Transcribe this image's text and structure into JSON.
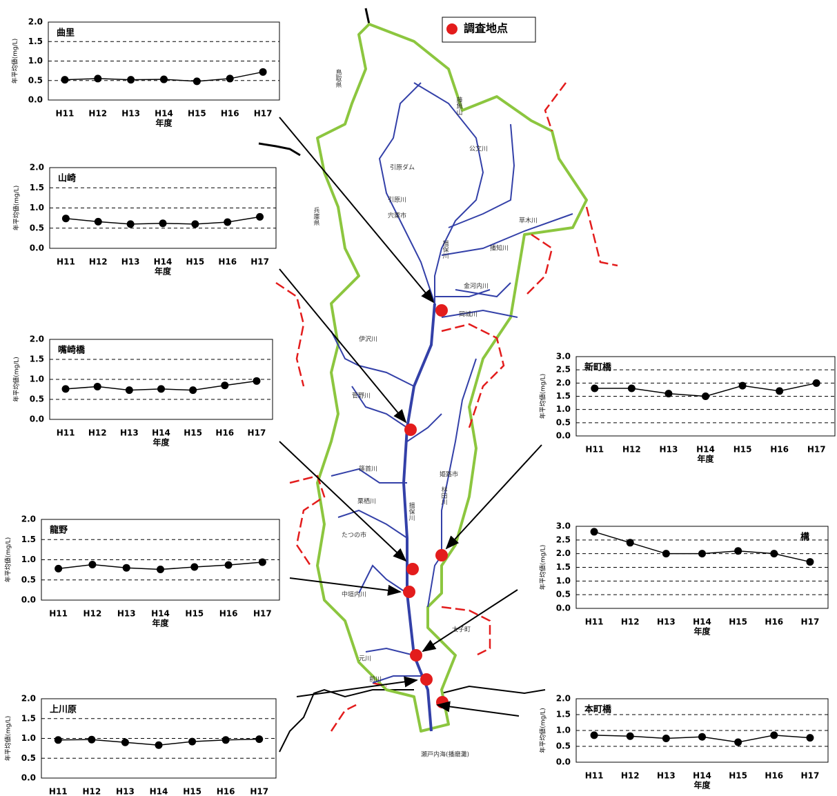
{
  "chart_data": [
    {
      "type": "line",
      "title": "曲里",
      "x_label": "年度",
      "y_label": "年平均値(mg/L)",
      "categories": [
        "H11",
        "H12",
        "H13",
        "H14",
        "H15",
        "H16",
        "H17"
      ],
      "values": [
        0.52,
        0.55,
        0.52,
        0.53,
        0.48,
        0.55,
        0.72
      ],
      "color": "#000000",
      "ylim": [
        0,
        2
      ],
      "yticks": [
        {
          "value": 0,
          "label": "0.0"
        },
        0.5,
        {
          "value": 1,
          "label": "1.0"
        },
        1.5,
        {
          "value": 2,
          "label": "2.0"
        }
      ],
      "grid": true
    },
    {
      "type": "line",
      "title": "山崎",
      "x_label": "年度",
      "y_label": "年平均値(mg/L)",
      "categories": [
        "H11",
        "H12",
        "H13",
        "H14",
        "H15",
        "H16",
        "H17"
      ],
      "values": [
        0.74,
        0.66,
        0.6,
        0.62,
        0.6,
        0.65,
        0.78
      ],
      "color": "#000000",
      "ylim": [
        0,
        2
      ],
      "yticks": [
        {
          "value": 0,
          "label": "0.0"
        },
        0.5,
        {
          "value": 1,
          "label": "1.0"
        },
        1.5,
        {
          "value": 2,
          "label": "2.0"
        }
      ],
      "grid": true
    },
    {
      "type": "line",
      "title": "嘴崎橋",
      "x_label": "年度",
      "y_label": "年平均値(mg/L)",
      "categories": [
        "H11",
        "H12",
        "H13",
        "H14",
        "H15",
        "H16",
        "H17"
      ],
      "values": [
        0.76,
        0.82,
        0.73,
        0.76,
        0.73,
        0.85,
        0.96
      ],
      "color": "#000000",
      "ylim": [
        0,
        2
      ],
      "yticks": [
        {
          "value": 0,
          "label": "0.0"
        },
        0.5,
        {
          "value": 1,
          "label": "1.0"
        },
        1.5,
        {
          "value": 2,
          "label": "2.0"
        }
      ],
      "grid": true
    },
    {
      "type": "line",
      "title": "龍野",
      "x_label": "年度",
      "y_label": "年平均値(mg/L)",
      "categories": [
        "H11",
        "H12",
        "H13",
        "H14",
        "H15",
        "H16",
        "H17"
      ],
      "values": [
        0.78,
        0.88,
        0.8,
        0.76,
        0.82,
        0.87,
        0.94
      ],
      "color": "#000000",
      "ylim": [
        0,
        2
      ],
      "yticks": [
        {
          "value": 0,
          "label": "0.0"
        },
        0.5,
        {
          "value": 1,
          "label": "1.0"
        },
        1.5,
        {
          "value": 2,
          "label": "2.0"
        }
      ],
      "grid": true
    },
    {
      "type": "line",
      "title": "上川原",
      "x_label": "年度",
      "y_label": "年平均値(mg/L)",
      "categories": [
        "H11",
        "H12",
        "H13",
        "H14",
        "H15",
        "H16",
        "H17"
      ],
      "values": [
        0.96,
        0.97,
        0.9,
        0.83,
        0.92,
        0.96,
        0.98
      ],
      "color": "#000000",
      "ylim": [
        0,
        2
      ],
      "yticks": [
        {
          "value": 0,
          "label": "0.0"
        },
        0.5,
        {
          "value": 1,
          "label": "1.0"
        },
        1.5,
        {
          "value": 2,
          "label": "2.0"
        }
      ],
      "grid": true
    },
    {
      "type": "line",
      "title": "新町橋",
      "x_label": "年度",
      "y_label": "年平均値(mg/L)",
      "categories": [
        "H11",
        "H12",
        "H13",
        "H14",
        "H15",
        "H16",
        "H17"
      ],
      "values": [
        1.8,
        1.8,
        1.6,
        1.5,
        1.9,
        1.7,
        2.0
      ],
      "color": "#000000",
      "ylim": [
        0,
        3
      ],
      "yticks": [
        {
          "value": 0,
          "label": "0.0"
        },
        0.5,
        {
          "value": 1,
          "label": "1.0"
        },
        1.5,
        {
          "value": 2,
          "label": "2.0"
        },
        2.5,
        {
          "value": 3,
          "label": "3.0"
        }
      ],
      "grid": true
    },
    {
      "type": "line",
      "title": "構",
      "x_label": "年度",
      "y_label": "年平均値(mg/L)",
      "categories": [
        "H11",
        "H12",
        "H13",
        "H14",
        "H15",
        "H16",
        "H17"
      ],
      "values": [
        2.8,
        2.4,
        2.0,
        2.0,
        2.1,
        2.0,
        1.7
      ],
      "color": "#000000",
      "ylim": [
        0,
        3
      ],
      "yticks": [
        {
          "value": 0,
          "label": "0.0"
        },
        0.5,
        {
          "value": 1,
          "label": "1.0"
        },
        1.5,
        {
          "value": 2,
          "label": "2.0"
        },
        2.5,
        {
          "value": 3,
          "label": "3.0"
        }
      ],
      "grid": true
    },
    {
      "type": "line",
      "title": "本町橋",
      "x_label": "年度",
      "y_label": "年平均値(mg/L)",
      "categories": [
        "H11",
        "H12",
        "H13",
        "H14",
        "H15",
        "H16",
        "H17"
      ],
      "values": [
        0.85,
        0.82,
        0.75,
        0.8,
        0.63,
        0.85,
        0.77
      ],
      "color": "#000000",
      "ylim": [
        0,
        2
      ],
      "yticks": [
        {
          "value": 0,
          "label": "0.0"
        },
        0.5,
        {
          "value": 1,
          "label": "1.0"
        },
        1.5,
        {
          "value": 2,
          "label": "2.0"
        }
      ],
      "grid": true
    }
  ],
  "map": {
    "legend": "調査地点",
    "labels": [
      "鳥取県",
      "藤無山",
      "公文川",
      "引原ダム",
      "引原川",
      "兵庫県",
      "宍粟市",
      "草木川",
      "揖保川",
      "播知川",
      "金河内川",
      "岡城川",
      "伊沢川",
      "菅野川",
      "篠首川",
      "姫路市",
      "林田川",
      "栗栖川",
      "揖保川",
      "たつの市",
      "中垣内川",
      "太子町",
      "前川",
      "元川",
      "瀬戸内海(播磨灘)"
    ]
  }
}
